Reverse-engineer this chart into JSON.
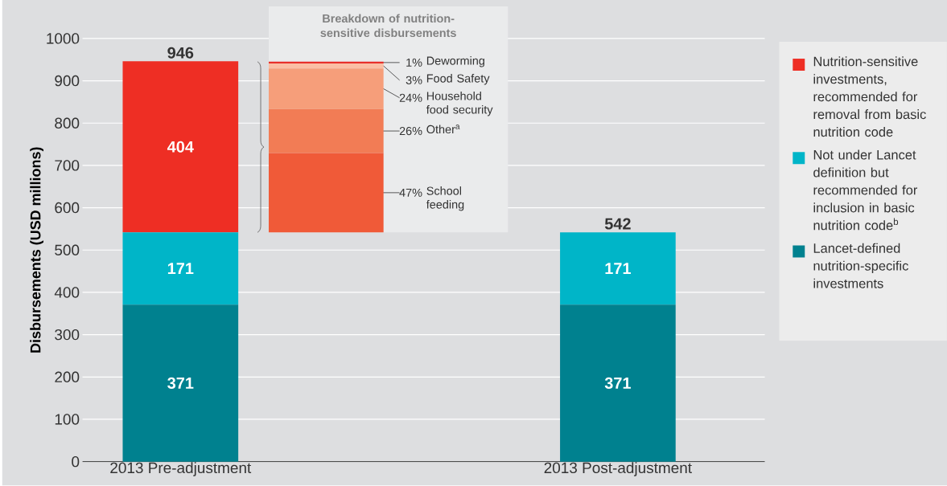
{
  "chart_data": [
    {
      "type": "bar",
      "stacked": true,
      "ylabel": "Disbursements (USD millions)",
      "categories": [
        "2013 Pre-adjustment",
        "2013 Post-adjustment"
      ],
      "ylim": [
        0,
        1000
      ],
      "yticks": [
        0,
        100,
        200,
        300,
        400,
        500,
        600,
        700,
        800,
        900,
        1000
      ],
      "grid": "y",
      "legend": "right",
      "data_labels": true,
      "totals": [
        "946",
        "542"
      ],
      "series": [
        {
          "name": "Lancet-defined nutrition-specific investments",
          "color": "#00818f",
          "values": [
            371,
            371
          ]
        },
        {
          "name": "Not under Lancet definition but recommended for inclusion in basic nutrition code$^{b}$",
          "color": "#00b5c8",
          "values": [
            171,
            171
          ]
        },
        {
          "name": "Nutrition-sensitive investments, recommended for removal from basic nutrition code",
          "color": "#ee2e24",
          "values": [
            404,
            null
          ]
        }
      ]
    },
    {
      "type": "bar",
      "stacked": true,
      "title": "Breakdown of nutrition-sensitive disbursements",
      "categories": [
        null
      ],
      "tick_labels": false,
      "series": [
        {
          "name": "School feeding",
          "color": "#f05a38",
          "values": [
            47
          ],
          "value_labels": [
            "47%"
          ]
        },
        {
          "name": "Other$^{a}$",
          "color": "#f27c55",
          "values": [
            26
          ],
          "value_labels": [
            "26%"
          ]
        },
        {
          "name": "Household food security",
          "color": "#f69e7a",
          "values": [
            24
          ],
          "value_labels": [
            "24%"
          ]
        },
        {
          "name": "Food Safety",
          "color": "#fbbfa4",
          "values": [
            3
          ],
          "value_labels": [
            "3%"
          ]
        },
        {
          "name": "Deworming",
          "color": "#e8302a",
          "values": [
            1
          ],
          "value_labels": [
            "1%"
          ]
        }
      ]
    }
  ]
}
